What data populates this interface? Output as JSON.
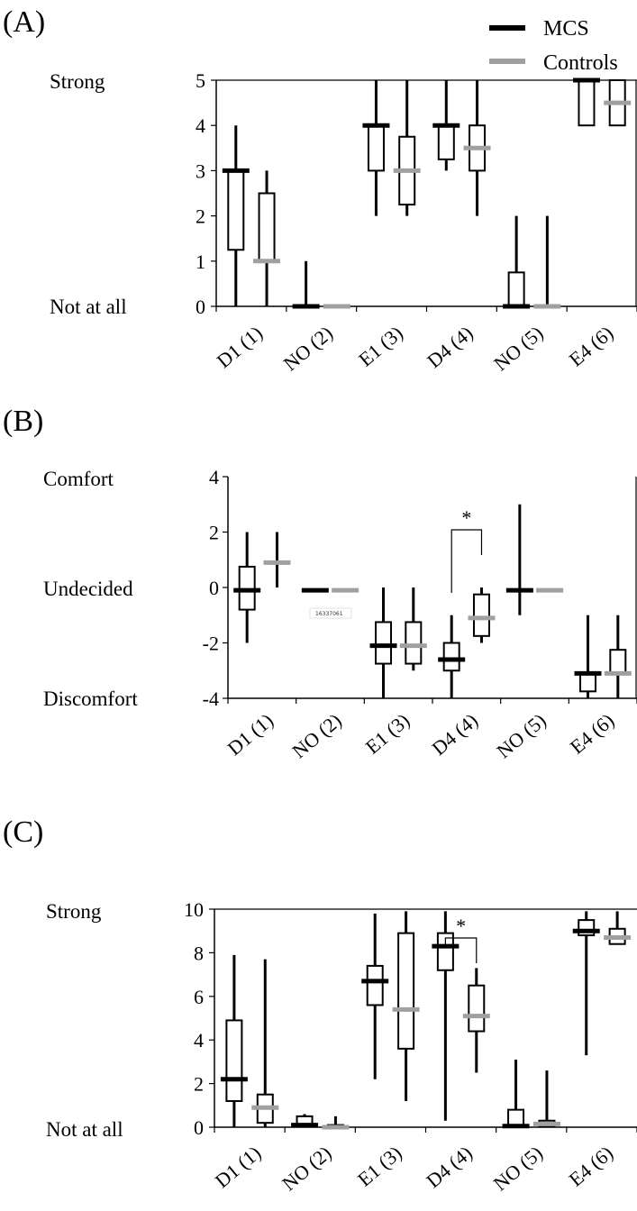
{
  "colors": {
    "mcs": "#000000",
    "controls": "#a0a0a0"
  },
  "legend": {
    "mcs_label": "MCS",
    "controls_label": "Controls"
  },
  "watermark": "16337061",
  "chart_data": [
    {
      "panel": "(A)",
      "type": "boxplot",
      "categories": [
        "D1 (1)",
        "NO (2)",
        "E1 (3)",
        "D4 (4)",
        "NO (5)",
        "E4 (6)"
      ],
      "ylim": [
        0,
        5
      ],
      "yticks": [
        0,
        1,
        2,
        3,
        4,
        5
      ],
      "side_labels": {
        "top": "Strong",
        "bottom": "Not at all"
      },
      "series": [
        {
          "name": "MCS",
          "boxes": [
            {
              "min": 0,
              "q1": 1.25,
              "median": 3,
              "q3": 3,
              "max": 4
            },
            {
              "min": 0,
              "q1": 0,
              "median": 0,
              "q3": 0,
              "max": 1
            },
            {
              "min": 2,
              "q1": 3,
              "median": 4,
              "q3": 4,
              "max": 5
            },
            {
              "min": 3,
              "q1": 3.25,
              "median": 4,
              "q3": 4,
              "max": 5
            },
            {
              "min": 0,
              "q1": 0,
              "median": 0,
              "q3": 0.75,
              "max": 2
            },
            {
              "min": 4,
              "q1": 4,
              "median": 5,
              "q3": 5,
              "max": 5
            }
          ]
        },
        {
          "name": "Controls",
          "boxes": [
            {
              "min": 0,
              "q1": 1,
              "median": 1,
              "q3": 2.5,
              "max": 3
            },
            {
              "min": 0,
              "q1": 0,
              "median": 0,
              "q3": 0,
              "max": 0
            },
            {
              "min": 2,
              "q1": 2.25,
              "median": 3,
              "q3": 3.75,
              "max": 5
            },
            {
              "min": 2,
              "q1": 3,
              "median": 3.5,
              "q3": 4,
              "max": 5
            },
            {
              "min": 0,
              "q1": 0,
              "median": 0,
              "q3": 0,
              "max": 2
            },
            {
              "min": 4,
              "q1": 4,
              "median": 4.5,
              "q3": 5,
              "max": 5
            }
          ]
        }
      ],
      "significance": []
    },
    {
      "panel": "(B)",
      "type": "boxplot",
      "categories": [
        "D1 (1)",
        "NO (2)",
        "E1 (3)",
        "D4 (4)",
        "NO (5)",
        "E4 (6)"
      ],
      "ylim": [
        -4,
        4
      ],
      "yticks": [
        4,
        2,
        0,
        -2,
        -4
      ],
      "side_labels": {
        "top": "Comfort",
        "middle": "Undecided",
        "bottom": "Discomfort"
      },
      "series": [
        {
          "name": "MCS",
          "boxes": [
            {
              "min": -2,
              "q1": -0.8,
              "median": -0.1,
              "q3": 0.75,
              "max": 2
            },
            {
              "min": -0.1,
              "q1": -0.1,
              "median": -0.1,
              "q3": -0.1,
              "max": -0.1
            },
            {
              "min": -4,
              "q1": -2.75,
              "median": -2.1,
              "q3": -1.25,
              "max": 0
            },
            {
              "min": -4,
              "q1": -3,
              "median": -2.6,
              "q3": -2,
              "max": -1
            },
            {
              "min": -1,
              "q1": -0.1,
              "median": -0.1,
              "q3": -0.1,
              "max": 3
            },
            {
              "min": -4,
              "q1": -3.75,
              "median": -3.1,
              "q3": -3.1,
              "max": -1
            }
          ]
        },
        {
          "name": "Controls",
          "boxes": [
            {
              "min": 0,
              "q1": 0.9,
              "median": 0.9,
              "q3": 0.9,
              "max": 2
            },
            {
              "min": -0.1,
              "q1": -0.1,
              "median": -0.1,
              "q3": -0.1,
              "max": -0.1
            },
            {
              "min": -3,
              "q1": -2.75,
              "median": -2.1,
              "q3": -1.25,
              "max": 0
            },
            {
              "min": -2,
              "q1": -1.75,
              "median": -1.1,
              "q3": -0.25,
              "max": 0
            },
            {
              "min": -0.1,
              "q1": -0.1,
              "median": -0.1,
              "q3": -0.1,
              "max": -0.1
            },
            {
              "min": -4,
              "q1": -3.1,
              "median": -3.1,
              "q3": -2.25,
              "max": -1
            }
          ]
        }
      ],
      "significance": [
        {
          "category_index": 3,
          "label": "*"
        }
      ]
    },
    {
      "panel": "(C)",
      "type": "boxplot",
      "categories": [
        "D1 (1)",
        "NO (2)",
        "E1 (3)",
        "D4 (4)",
        "NO (5)",
        "E4 (6)"
      ],
      "ylim": [
        0,
        10
      ],
      "yticks": [
        0,
        2,
        4,
        6,
        8,
        10
      ],
      "side_labels": {
        "top": "Strong",
        "bottom": "Not at all"
      },
      "series": [
        {
          "name": "MCS",
          "boxes": [
            {
              "min": 0,
              "q1": 1.2,
              "median": 2.2,
              "q3": 4.9,
              "max": 7.9
            },
            {
              "min": 0,
              "q1": 0.1,
              "median": 0.1,
              "q3": 0.5,
              "max": 0.6
            },
            {
              "min": 2.2,
              "q1": 5.6,
              "median": 6.7,
              "q3": 7.4,
              "max": 9.8
            },
            {
              "min": 0.3,
              "q1": 7.2,
              "median": 8.3,
              "q3": 8.9,
              "max": 9.9
            },
            {
              "min": 0,
              "q1": 0.05,
              "median": 0.05,
              "q3": 0.8,
              "max": 3.1
            },
            {
              "min": 3.3,
              "q1": 8.8,
              "median": 9,
              "q3": 9.5,
              "max": 9.9
            }
          ]
        },
        {
          "name": "Controls",
          "boxes": [
            {
              "min": 0,
              "q1": 0.2,
              "median": 0.9,
              "q3": 1.5,
              "max": 7.7
            },
            {
              "min": 0,
              "q1": 0,
              "median": 0,
              "q3": 0.1,
              "max": 0.5
            },
            {
              "min": 1.2,
              "q1": 3.6,
              "median": 5.4,
              "q3": 8.9,
              "max": 9.9
            },
            {
              "min": 2.5,
              "q1": 4.4,
              "median": 5.1,
              "q3": 6.5,
              "max": 7.3
            },
            {
              "min": 0,
              "q1": 0.05,
              "median": 0.15,
              "q3": 0.3,
              "max": 2.6
            },
            {
              "min": 8.4,
              "q1": 8.4,
              "median": 8.7,
              "q3": 9.1,
              "max": 9.9
            }
          ]
        }
      ],
      "significance": [
        {
          "category_index": 3,
          "label": "*"
        }
      ]
    }
  ]
}
